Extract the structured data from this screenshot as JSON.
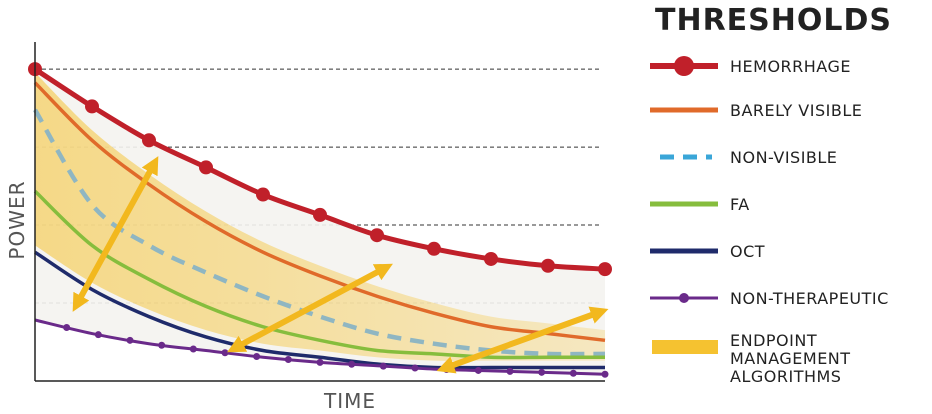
{
  "chart_data": {
    "type": "line",
    "title": "",
    "xlabel": "TIME",
    "ylabel": "POWER",
    "legend_title": "THRESHOLDS",
    "legend_position": "right",
    "grid": "dashed horizontal",
    "xlim": [
      0,
      1
    ],
    "ylim": [
      0,
      1
    ],
    "x": [
      0,
      0.1,
      0.2,
      0.3,
      0.4,
      0.5,
      0.6,
      0.7,
      0.8,
      0.9,
      1.0
    ],
    "series": [
      {
        "name": "HEMORRHAGE",
        "color": "#c0202a",
        "style": "solid-markers-large",
        "values": [
          0.92,
          0.81,
          0.71,
          0.63,
          0.55,
          0.49,
          0.43,
          0.39,
          0.36,
          0.34,
          0.33
        ]
      },
      {
        "name": "BARELY VISIBLE",
        "color": "#e06a2a",
        "style": "solid",
        "values": [
          0.88,
          0.71,
          0.58,
          0.47,
          0.38,
          0.31,
          0.25,
          0.2,
          0.16,
          0.14,
          0.12
        ]
      },
      {
        "name": "NON-VISIBLE",
        "color": "#3aa6d8",
        "style": "dashed",
        "values": [
          0.8,
          0.52,
          0.4,
          0.32,
          0.25,
          0.19,
          0.14,
          0.11,
          0.09,
          0.08,
          0.08
        ]
      },
      {
        "name": "FA",
        "color": "#86bd3d",
        "style": "solid",
        "values": [
          0.56,
          0.4,
          0.3,
          0.22,
          0.16,
          0.12,
          0.09,
          0.08,
          0.07,
          0.07,
          0.07
        ]
      },
      {
        "name": "OCT",
        "color": "#1f2b6b",
        "style": "solid",
        "values": [
          0.38,
          0.27,
          0.19,
          0.13,
          0.09,
          0.07,
          0.05,
          0.04,
          0.04,
          0.04,
          0.04
        ]
      },
      {
        "name": "NON-THERAPEUTIC",
        "color": "#6a2a8a",
        "style": "solid-markers-small",
        "values": [
          0.18,
          0.14,
          0.11,
          0.09,
          0.07,
          0.055,
          0.045,
          0.035,
          0.03,
          0.025,
          0.02
        ]
      }
    ],
    "band": {
      "name": "ENDPOINT MANAGEMENT ALGORITHMS",
      "color": "#f5c230"
    }
  },
  "legend": {
    "items": [
      {
        "label": "HEMORRHAGE",
        "color": "#c0202a",
        "style": "marker"
      },
      {
        "label": "BARELY VISIBLE",
        "color": "#e06a2a",
        "style": "solid"
      },
      {
        "label": "NON-VISIBLE",
        "color": "#3aa6d8",
        "style": "dashed"
      },
      {
        "label": "FA",
        "color": "#86bd3d",
        "style": "solid"
      },
      {
        "label": "OCT",
        "color": "#1f2b6b",
        "style": "solid"
      },
      {
        "label": "NON-THERAPEUTIC",
        "color": "#6a2a8a",
        "style": "small-marker"
      },
      {
        "label": "ENDPOINT",
        "label2": "MANAGEMENT",
        "label3": "ALGORITHMS",
        "color": "#f5c230",
        "style": "band"
      }
    ]
  }
}
